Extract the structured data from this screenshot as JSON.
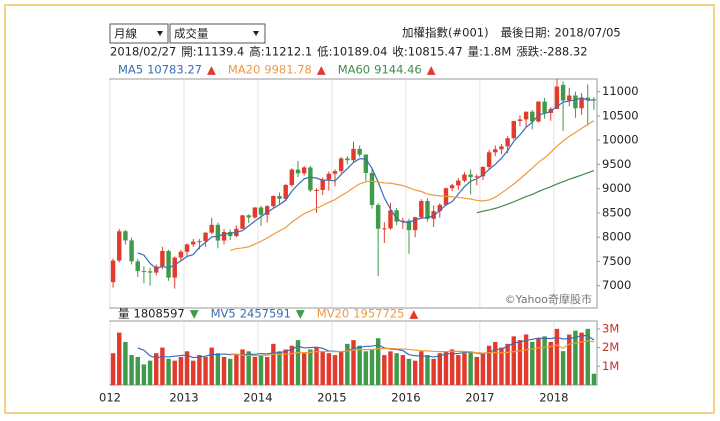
{
  "toolbar": {
    "period": "月線",
    "indicator": "成交量",
    "symbol": "加權指數(#001)",
    "last_date_label": "最後日期:",
    "last_date": "2018/07/05"
  },
  "info_line": {
    "date": "2018/02/27",
    "fields": [
      "開:11139.4",
      "高:11212.1",
      "低:10189.04",
      "收:10815.47",
      "量:1.8M",
      "漲跌:-288.32"
    ]
  },
  "chart_data": [
    {
      "type": "candlestick",
      "categories": [
        "012",
        null,
        null,
        null,
        null,
        null,
        null,
        null,
        null,
        null,
        null,
        null,
        "2013",
        null,
        null,
        null,
        null,
        null,
        null,
        null,
        null,
        null,
        null,
        null,
        "2014",
        null,
        null,
        null,
        null,
        null,
        null,
        null,
        null,
        null,
        null,
        null,
        "2015",
        null,
        null,
        null,
        null,
        null,
        null,
        null,
        null,
        null,
        null,
        null,
        "2016",
        null,
        null,
        null,
        null,
        null,
        null,
        null,
        null,
        null,
        null,
        null,
        "2017",
        null,
        null,
        null,
        null,
        null,
        null,
        null,
        null,
        null,
        null,
        null,
        "2018",
        null,
        null,
        null,
        null,
        null,
        null
      ],
      "open": [
        7072,
        7517,
        8121,
        7933,
        7501,
        7301,
        7296,
        7270,
        7397,
        7715,
        7166,
        7580,
        7699,
        7850,
        7907,
        7918,
        8093,
        8254,
        7930,
        8107,
        8021,
        8173,
        8450,
        8407,
        8611,
        8462,
        8639,
        8849,
        8791,
        9075,
        9393,
        9315,
        9436,
        8966,
        8974,
        9187,
        9307,
        9361,
        9622,
        9586,
        9820,
        9701,
        9323,
        8665,
        8174,
        8181,
        8554,
        8320,
        8338,
        8145,
        8411,
        8745,
        8377,
        8536,
        8666,
        9009,
        9069,
        9166,
        9290,
        9240,
        9254,
        9448,
        9750,
        9811,
        9872,
        10040,
        10395,
        10427,
        10586,
        10384,
        10794,
        10560,
        10643,
        11139.4,
        10815,
        10919,
        10657,
        10875,
        10837
      ],
      "high": [
        7560,
        8170,
        8150,
        7990,
        7550,
        7400,
        7370,
        7440,
        7800,
        7740,
        7600,
        7740,
        7870,
        7960,
        7960,
        8100,
        8400,
        8300,
        8170,
        8160,
        8240,
        8460,
        8470,
        8620,
        8650,
        8660,
        8860,
        8920,
        9100,
        9420,
        9570,
        9470,
        9470,
        9010,
        9230,
        9350,
        9400,
        9650,
        9670,
        9970,
        9890,
        9710,
        9400,
        8700,
        8310,
        8710,
        8600,
        8400,
        8380,
        8420,
        8780,
        8800,
        8650,
        8700,
        9020,
        9100,
        9220,
        9340,
        9400,
        9300,
        9460,
        9800,
        9890,
        9920,
        10080,
        10400,
        10510,
        10590,
        10620,
        10800,
        10870,
        10680,
        11270,
        11212.1,
        11080,
        11000,
        10970,
        11150,
        10890
      ],
      "low": [
        6960,
        7480,
        7850,
        7440,
        7180,
        7050,
        7000,
        7210,
        7340,
        7100,
        6940,
        7500,
        7610,
        7800,
        7750,
        7800,
        8060,
        7770,
        7850,
        7940,
        8000,
        8170,
        8290,
        8380,
        8230,
        8300,
        8600,
        8660,
        8740,
        9040,
        9240,
        9270,
        8930,
        8500,
        8870,
        8960,
        9050,
        9320,
        9500,
        9550,
        9650,
        9160,
        8590,
        7200,
        7880,
        8150,
        8250,
        8170,
        7660,
        8000,
        8380,
        8320,
        8210,
        8400,
        8640,
        8950,
        8970,
        9130,
        8880,
        9070,
        9180,
        9400,
        9670,
        9710,
        9730,
        10010,
        10290,
        10260,
        10220,
        10360,
        10440,
        10400,
        10640,
        10189.04,
        10700,
        10460,
        10520,
        10300,
        10620
      ],
      "close": [
        7517,
        8121,
        7933,
        7501,
        7301,
        7296,
        7270,
        7397,
        7715,
        7166,
        7580,
        7699,
        7850,
        7907,
        7918,
        8093,
        8254,
        7930,
        8107,
        8021,
        8173,
        8450,
        8407,
        8611,
        8462,
        8639,
        8849,
        8791,
        9075,
        9393,
        9315,
        9436,
        8966,
        8974,
        9187,
        9307,
        9361,
        9622,
        9586,
        9820,
        9701,
        9323,
        8665,
        8174,
        8181,
        8554,
        8320,
        8338,
        8145,
        8411,
        8745,
        8377,
        8536,
        8666,
        9009,
        9069,
        9166,
        9290,
        9240,
        9254,
        9448,
        9750,
        9811,
        9872,
        10040,
        10395,
        10427,
        10586,
        10384,
        10794,
        10560,
        10643,
        11104,
        10815.47,
        10919,
        10657,
        10875,
        10837,
        10820
      ],
      "up_color": "#e23b2e",
      "down_color": "#3f9a4a",
      "series": [
        {
          "name": "MA5",
          "color": "#3a6db5",
          "legend_value": "10783.27",
          "legend_arrow": "▲",
          "values": [
            null,
            null,
            null,
            null,
            7675,
            7630,
            7460,
            7353,
            7396,
            7369,
            7426,
            7511,
            7602,
            7640,
            7791,
            7893,
            8004,
            8020,
            8060,
            8081,
            8097,
            8136,
            8232,
            8332,
            8421,
            8514,
            8594,
            8670,
            8763,
            8949,
            9085,
            9202,
            9237,
            9217,
            9176,
            9174,
            9159,
            9290,
            9413,
            9539,
            9618,
            9610,
            9419,
            9137,
            8809,
            8579,
            8379,
            8313,
            8308,
            8354,
            8392,
            8403,
            8443,
            8547,
            8667,
            8731,
            8889,
            9040,
            9155,
            9204,
            9280,
            9396,
            9501,
            9627,
            9784,
            9974,
            10109,
            10264,
            10366,
            10517,
            10550,
            10593,
            10697,
            10783.27,
            10808,
            10828,
            10874,
            10821,
            10832
          ]
        },
        {
          "name": "MA20",
          "color": "#f09a3e",
          "legend_value": "9981.78",
          "legend_arrow": "▲",
          "values": [
            null,
            null,
            null,
            null,
            null,
            null,
            null,
            null,
            null,
            null,
            null,
            null,
            null,
            null,
            null,
            null,
            null,
            null,
            null,
            7729,
            7762,
            7778,
            7802,
            7857,
            7916,
            7983,
            8061,
            8131,
            8199,
            8311,
            8397,
            8484,
            8540,
            8593,
            8657,
            8718,
            8773,
            8857,
            8931,
            9021,
            9098,
            9141,
            9154,
            9133,
            9118,
            9114,
            9088,
            9065,
            9019,
            8970,
            8941,
            8888,
            8866,
            8851,
            8842,
            8830,
            8820,
            8804,
            8787,
            8759,
            8746,
            8767,
            8824,
            8909,
            9002,
            9094,
            9199,
            9312,
            9424,
            9543,
            9634,
            9747,
            9876,
            9981.78,
            10078,
            10158,
            10243,
            10321,
            10402
          ]
        },
        {
          "name": "MA60",
          "color": "#3e8e4e",
          "legend_value": "9144.46",
          "legend_arrow": "▲",
          "values": [
            null,
            null,
            null,
            null,
            null,
            null,
            null,
            null,
            null,
            null,
            null,
            null,
            null,
            null,
            null,
            null,
            null,
            null,
            null,
            null,
            null,
            null,
            null,
            null,
            null,
            null,
            null,
            null,
            null,
            null,
            null,
            null,
            null,
            null,
            null,
            null,
            null,
            null,
            null,
            null,
            null,
            null,
            null,
            null,
            null,
            null,
            null,
            null,
            null,
            null,
            null,
            null,
            null,
            null,
            null,
            null,
            null,
            null,
            null,
            8503,
            8535,
            8562,
            8593,
            8633,
            8679,
            8730,
            8783,
            8836,
            8881,
            8941,
            8991,
            9040,
            9094,
            9144.46,
            9192,
            9235,
            9279,
            9327,
            9373
          ]
        }
      ],
      "ylim": [
        6540,
        11260
      ],
      "yticks": [
        7000,
        7500,
        8000,
        8500,
        9000,
        9500,
        10000,
        10500,
        11000
      ],
      "grid": "x",
      "watermark": "©Yahoo奇摩股市"
    },
    {
      "type": "bar",
      "name": "量",
      "legend_value": "1808597",
      "legend_arrow": "▼",
      "values": [
        1700000,
        2800000,
        2300000,
        1600000,
        1500000,
        1100000,
        1300000,
        1700000,
        2000000,
        1400000,
        1300000,
        1500000,
        1800000,
        1300000,
        1600000,
        1500000,
        2000000,
        1700000,
        1500000,
        1400000,
        1600000,
        1900000,
        1800000,
        1500000,
        1600000,
        1500000,
        2200000,
        1800000,
        1900000,
        2100000,
        2400000,
        1700000,
        1900000,
        2000000,
        1800000,
        1700000,
        1600000,
        1800000,
        2200000,
        2400000,
        2100000,
        1800000,
        1900000,
        2500000,
        1600000,
        1800000,
        1700000,
        1600000,
        1400000,
        1300000,
        1800000,
        1600000,
        1400000,
        1700000,
        1800000,
        1900000,
        1600000,
        1700000,
        1800000,
        1500000,
        1700000,
        2100000,
        2300000,
        2000000,
        2200000,
        2600000,
        2400000,
        2700000,
        2300000,
        2500000,
        2600000,
        2300000,
        3000000,
        1808597,
        2700000,
        2900000,
        2800000,
        3000000,
        600000
      ],
      "series": [
        {
          "name": "MV5",
          "color": "#3a6db5",
          "legend_value": "2457591",
          "legend_arrow": "▼",
          "values": [
            null,
            null,
            null,
            null,
            1980000,
            1860000,
            1560000,
            1440000,
            1520000,
            1500000,
            1540000,
            1580000,
            1600000,
            1460000,
            1500000,
            1540000,
            1640000,
            1620000,
            1660000,
            1620000,
            1640000,
            1620000,
            1640000,
            1640000,
            1680000,
            1660000,
            1720000,
            1720000,
            1800000,
            1900000,
            2080000,
            1980000,
            2000000,
            2020000,
            1960000,
            1820000,
            1800000,
            1780000,
            1820000,
            1940000,
            2020000,
            2060000,
            2080000,
            2140000,
            1980000,
            1920000,
            1900000,
            1840000,
            1620000,
            1560000,
            1560000,
            1540000,
            1500000,
            1560000,
            1660000,
            1680000,
            1680000,
            1740000,
            1760000,
            1700000,
            1660000,
            1760000,
            1880000,
            1920000,
            2060000,
            2240000,
            2300000,
            2380000,
            2440000,
            2500000,
            2500000,
            2480000,
            2540000,
            2457591,
            2480000,
            2540000,
            2640000,
            2640000,
            2400000
          ]
        },
        {
          "name": "MV20",
          "color": "#f09a3e",
          "legend_value": "1957725",
          "legend_arrow": "▲",
          "values": [
            null,
            null,
            null,
            null,
            null,
            null,
            null,
            null,
            null,
            null,
            null,
            null,
            null,
            null,
            null,
            null,
            null,
            null,
            null,
            1650000,
            1645000,
            1600000,
            1575000,
            1570000,
            1575000,
            1595000,
            1640000,
            1645000,
            1640000,
            1675000,
            1730000,
            1740000,
            1745000,
            1780000,
            1790000,
            1800000,
            1780000,
            1785000,
            1820000,
            1870000,
            1895000,
            1890000,
            1895000,
            1945000,
            1945000,
            1960000,
            1935000,
            1925000,
            1900000,
            1860000,
            1830000,
            1825000,
            1800000,
            1785000,
            1785000,
            1795000,
            1795000,
            1790000,
            1770000,
            1725000,
            1705000,
            1720000,
            1740000,
            1715000,
            1745000,
            1785000,
            1820000,
            1875000,
            1920000,
            1980000,
            2020000,
            2055000,
            2135000,
            1957725,
            2185000,
            2235000,
            2295000,
            2360000,
            2305000
          ]
        }
      ],
      "ylim": [
        0,
        3420000
      ],
      "yticks": [
        {
          "value": 1000000,
          "label": "1M"
        },
        {
          "value": 2000000,
          "label": "2M"
        },
        {
          "value": 3000000,
          "label": "3M"
        }
      ]
    }
  ]
}
